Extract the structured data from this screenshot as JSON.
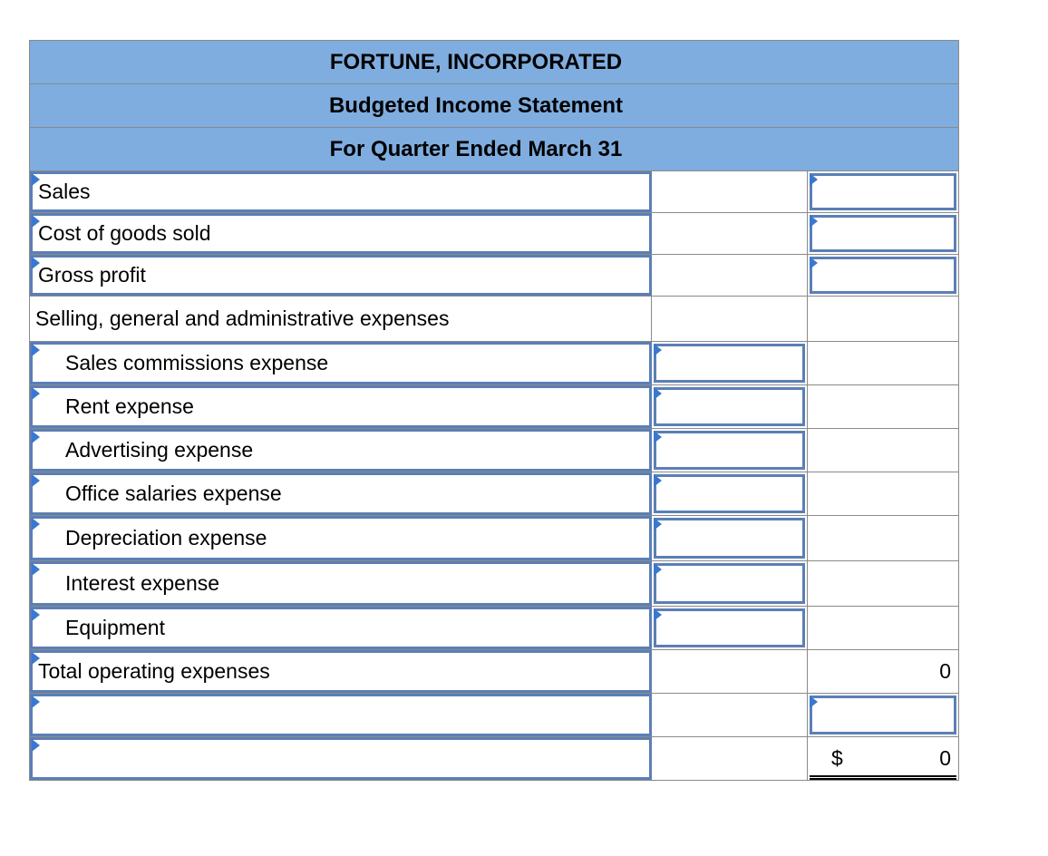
{
  "header": {
    "company": "FORTUNE, INCORPORATED",
    "statement": "Budgeted Income Statement",
    "period": "For Quarter Ended March 31"
  },
  "rows": [
    {
      "label": "Sales",
      "c2": "",
      "c3": ""
    },
    {
      "label": "Cost of goods sold",
      "c2": "",
      "c3": ""
    },
    {
      "label": "Gross profit",
      "c2": "",
      "c3": ""
    },
    {
      "label": "Selling, general and administrative expenses",
      "c2": "",
      "c3": ""
    },
    {
      "label": "Sales commissions expense",
      "c2": "",
      "c3": ""
    },
    {
      "label": "Rent expense",
      "c2": "",
      "c3": ""
    },
    {
      "label": "Advertising expense",
      "c2": "",
      "c3": ""
    },
    {
      "label": "Office salaries expense",
      "c2": "",
      "c3": ""
    },
    {
      "label": "Depreciation expense",
      "c2": "",
      "c3": ""
    },
    {
      "label": "Interest expense",
      "c2": "",
      "c3": ""
    },
    {
      "label": "Equipment",
      "c2": "",
      "c3": ""
    },
    {
      "label": "Total operating expenses",
      "c2": "",
      "c3": "0"
    },
    {
      "label": "",
      "c2": "",
      "c3": ""
    },
    {
      "label": "",
      "c2": "",
      "c3": "0",
      "currency": "$"
    }
  ],
  "colors": {
    "header_bg": "#7faddf",
    "input_border": "#5b7fb5",
    "dropdown_marker": "#3a78d0"
  }
}
